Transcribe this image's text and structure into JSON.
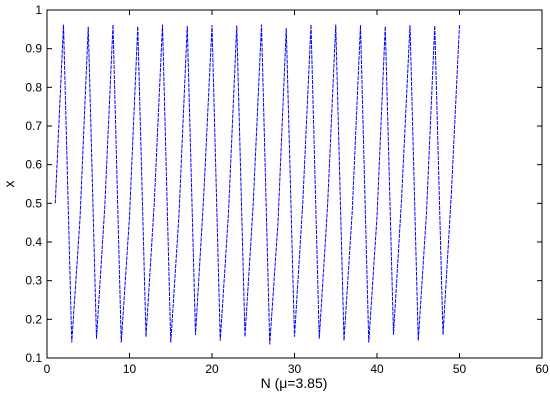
{
  "chart_data": {
    "type": "line",
    "x_label": "N (μ=3.85)",
    "y_label": "x",
    "x": [
      1,
      2,
      3,
      4,
      5,
      6,
      7,
      8,
      9,
      10,
      11,
      12,
      13,
      14,
      15,
      16,
      17,
      18,
      19,
      20,
      21,
      22,
      23,
      24,
      25,
      26,
      27,
      28,
      29,
      30,
      31,
      32,
      33,
      34,
      35,
      36,
      37,
      38,
      39,
      40,
      41,
      42,
      43,
      44,
      45,
      46,
      47,
      48,
      49,
      50
    ],
    "series": [
      {
        "color": "#0000ff",
        "values": [
          0.5,
          0.962,
          0.14,
          0.46,
          0.957,
          0.15,
          0.49,
          0.962,
          0.14,
          0.465,
          0.958,
          0.155,
          0.5,
          0.962,
          0.14,
          0.47,
          0.959,
          0.16,
          0.52,
          0.961,
          0.145,
          0.475,
          0.96,
          0.155,
          0.5,
          0.962,
          0.135,
          0.45,
          0.953,
          0.155,
          0.5,
          0.962,
          0.15,
          0.49,
          0.962,
          0.145,
          0.48,
          0.961,
          0.14,
          0.465,
          0.958,
          0.16,
          0.52,
          0.961,
          0.145,
          0.475,
          0.96,
          0.16,
          0.52,
          0.961
        ]
      }
    ],
    "xlim": [
      0,
      60
    ],
    "xticks": [
      0,
      10,
      20,
      30,
      40,
      50,
      60
    ],
    "ylim": [
      0.1,
      1
    ],
    "yticks": [
      0.1,
      0.2,
      0.3,
      0.4,
      0.5,
      0.6,
      0.7,
      0.8,
      0.9,
      1
    ]
  }
}
